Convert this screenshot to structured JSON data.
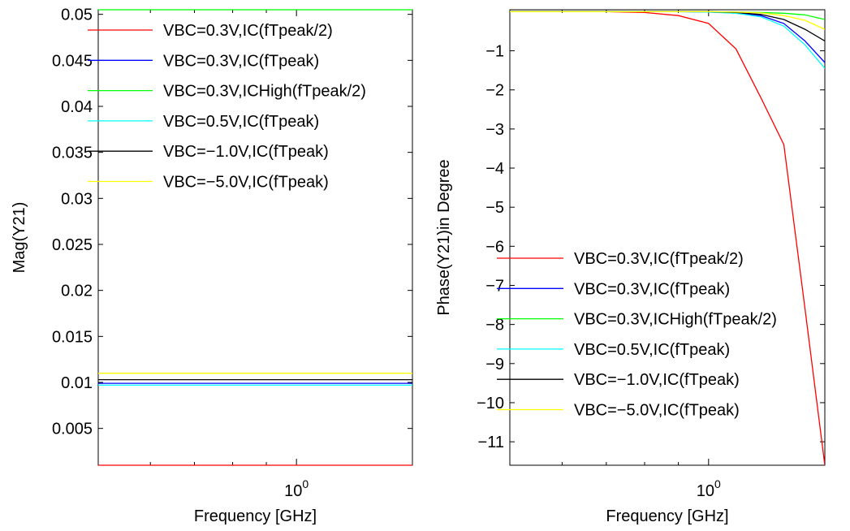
{
  "chart_data": [
    {
      "type": "line",
      "x_scale": "log",
      "xlabel": "Frequency     [GHz]",
      "ylabel": "Mag(Y21)",
      "xlim": [
        0.5,
        1.5
      ],
      "ylim": [
        0.001,
        0.0505
      ],
      "x_ticks": [
        {
          "value": 1,
          "base": "10",
          "exp": "0"
        }
      ],
      "y_ticks": [
        {
          "value": 0.005,
          "label": "0.005"
        },
        {
          "value": 0.01,
          "label": "0.01"
        },
        {
          "value": 0.015,
          "label": "0.015"
        },
        {
          "value": 0.02,
          "label": "0.02"
        },
        {
          "value": 0.025,
          "label": "0.025"
        },
        {
          "value": 0.03,
          "label": "0.03"
        },
        {
          "value": 0.035,
          "label": "0.035"
        },
        {
          "value": 0.04,
          "label": "0.04"
        },
        {
          "value": 0.045,
          "label": "0.045"
        },
        {
          "value": 0.05,
          "label": "0.05"
        }
      ],
      "legend_position": "top",
      "x": [
        0.5,
        0.6,
        0.7,
        0.8,
        0.9,
        1.0,
        1.1,
        1.2,
        1.3,
        1.4,
        1.5
      ],
      "series": [
        {
          "name": "VBC=0.3V,IC(fTpeak/2)",
          "color": "#ff0000",
          "values": [
            0.001,
            0.001,
            0.001,
            0.001,
            0.001,
            0.001,
            0.001,
            0.001,
            0.001,
            0.001,
            0.001
          ]
        },
        {
          "name": "VBC=0.3V,IC(fTpeak)",
          "color": "#0000ff",
          "values": [
            0.0099,
            0.0099,
            0.0099,
            0.0099,
            0.0099,
            0.0099,
            0.0099,
            0.0099,
            0.0099,
            0.0099,
            0.0099
          ]
        },
        {
          "name": "VBC=0.3V,ICHigh(fTpeak/2)",
          "color": "#00ff00",
          "values": [
            0.0505,
            0.0505,
            0.0505,
            0.0505,
            0.0505,
            0.0505,
            0.0505,
            0.0505,
            0.0505,
            0.0505,
            0.0505
          ]
        },
        {
          "name": "VBC=0.5V,IC(fTpeak)",
          "color": "#00ffff",
          "values": [
            0.0097,
            0.0097,
            0.0097,
            0.0097,
            0.0097,
            0.0097,
            0.0097,
            0.0097,
            0.0097,
            0.0097,
            0.0097
          ]
        },
        {
          "name": "VBC=−1.0V,IC(fTpeak)",
          "color": "#000000",
          "values": [
            0.0103,
            0.0103,
            0.0103,
            0.0103,
            0.0103,
            0.0103,
            0.0103,
            0.0103,
            0.0103,
            0.0103,
            0.0103
          ]
        },
        {
          "name": "VBC=−5.0V,IC(fTpeak)",
          "color": "#ffff00",
          "values": [
            0.011,
            0.011,
            0.011,
            0.011,
            0.011,
            0.011,
            0.011,
            0.011,
            0.011,
            0.011,
            0.011
          ]
        }
      ]
    },
    {
      "type": "line",
      "x_scale": "log",
      "xlabel": "Frequency     [GHz]",
      "ylabel": "Phase(Y21)in Degree",
      "xlim": [
        0.5,
        1.5
      ],
      "ylim": [
        -11.6,
        0.05
      ],
      "x_ticks": [
        {
          "value": 1,
          "base": "10",
          "exp": "0"
        }
      ],
      "y_ticks": [
        {
          "value": -1,
          "label": "−1"
        },
        {
          "value": -2,
          "label": "−2"
        },
        {
          "value": -3,
          "label": "−3"
        },
        {
          "value": -4,
          "label": "−4"
        },
        {
          "value": -5,
          "label": "−5"
        },
        {
          "value": -6,
          "label": "−6"
        },
        {
          "value": -7,
          "label": "−7"
        },
        {
          "value": -8,
          "label": "−8"
        },
        {
          "value": -9,
          "label": "−9"
        },
        {
          "value": -10,
          "label": "−10"
        },
        {
          "value": -11,
          "label": "−11"
        }
      ],
      "legend_position": "bottom",
      "x": [
        0.5,
        0.6,
        0.7,
        0.8,
        0.9,
        1.0,
        1.1,
        1.2,
        1.3,
        1.4,
        1.5
      ],
      "series": [
        {
          "name": "VBC=0.3V,IC(fTpeak/2)",
          "color": "#ff0000",
          "values": [
            0,
            0,
            0,
            -0.02,
            -0.1,
            -0.3,
            -0.95,
            -2.2,
            -3.4,
            -7.6,
            -11.6
          ]
        },
        {
          "name": "VBC=0.3V,IC(fTpeak)",
          "color": "#0000ff",
          "values": [
            0,
            0,
            0,
            0,
            0,
            -0.01,
            -0.03,
            -0.1,
            -0.3,
            -0.75,
            -1.3
          ]
        },
        {
          "name": "VBC=0.3V,ICHigh(fTpeak/2)",
          "color": "#00ff00",
          "values": [
            0,
            0,
            0,
            0,
            0,
            0,
            -0.01,
            -0.02,
            -0.04,
            -0.08,
            -0.2
          ]
        },
        {
          "name": "VBC=0.5V,IC(fTpeak)",
          "color": "#00ffff",
          "values": [
            0,
            0,
            0,
            0,
            0,
            -0.01,
            -0.04,
            -0.13,
            -0.37,
            -0.85,
            -1.45
          ]
        },
        {
          "name": "VBC=−1.0V,IC(fTpeak)",
          "color": "#000000",
          "values": [
            0,
            0,
            0,
            0,
            0,
            0,
            -0.02,
            -0.07,
            -0.2,
            -0.45,
            -0.75
          ]
        },
        {
          "name": "VBC=−5.0V,IC(fTpeak)",
          "color": "#ffff00",
          "values": [
            0,
            0,
            0,
            0,
            0,
            0,
            -0.01,
            -0.03,
            -0.1,
            -0.22,
            -0.45
          ]
        }
      ]
    }
  ]
}
